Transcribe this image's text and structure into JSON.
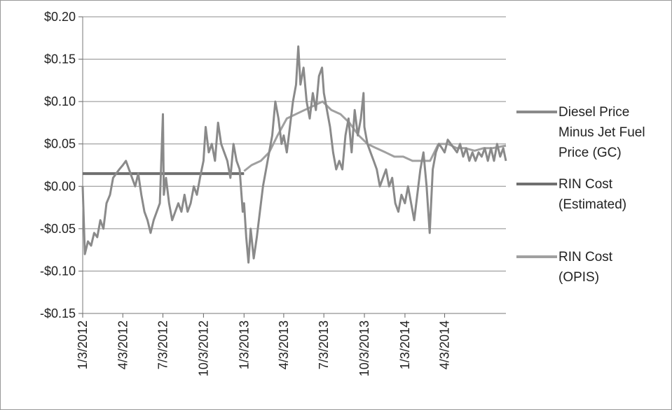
{
  "chart_data": {
    "type": "line",
    "title": "",
    "xlabel": "",
    "ylabel": "",
    "ylim": [
      -0.15,
      0.2
    ],
    "y_ticks": [
      0.2,
      0.15,
      0.1,
      0.05,
      0.0,
      -0.05,
      -0.1,
      -0.15
    ],
    "y_tick_labels": [
      "$0.20",
      "$0.15",
      "$0.10",
      "$0.05",
      "$0.00",
      "-$0.05",
      "-$0.10",
      "-$0.15"
    ],
    "x_range": [
      "2012-01-03",
      "2014-08-20"
    ],
    "x_ticks": [
      "2012-01-03",
      "2012-04-03",
      "2012-07-03",
      "2012-10-03",
      "2013-01-03",
      "2013-04-03",
      "2013-07-03",
      "2013-10-03",
      "2014-01-03",
      "2014-04-03"
    ],
    "x_tick_labels": [
      "1/3/2012",
      "4/3/2012",
      "7/3/2012",
      "10/3/2012",
      "1/3/2013",
      "4/3/2013",
      "7/3/2013",
      "10/3/2013",
      "1/3/2014",
      "4/3/2014"
    ],
    "grid": "horizontal",
    "legend_position": "right",
    "series": [
      {
        "name": "Diesel Price Minus Jet Fuel Price (GC)",
        "color": "#8a8a8a",
        "points": [
          [
            "2012-01-03",
            0.0
          ],
          [
            "2012-01-08",
            -0.08
          ],
          [
            "2012-01-15",
            -0.065
          ],
          [
            "2012-01-22",
            -0.07
          ],
          [
            "2012-01-29",
            -0.055
          ],
          [
            "2012-02-05",
            -0.06
          ],
          [
            "2012-02-12",
            -0.04
          ],
          [
            "2012-02-19",
            -0.05
          ],
          [
            "2012-02-26",
            -0.02
          ],
          [
            "2012-03-05",
            -0.01
          ],
          [
            "2012-03-12",
            0.01
          ],
          [
            "2012-03-19",
            0.015
          ],
          [
            "2012-03-26",
            0.02
          ],
          [
            "2012-04-03",
            0.025
          ],
          [
            "2012-04-10",
            0.03
          ],
          [
            "2012-04-17",
            0.02
          ],
          [
            "2012-04-24",
            0.01
          ],
          [
            "2012-05-01",
            0.0
          ],
          [
            "2012-05-08",
            0.015
          ],
          [
            "2012-05-15",
            -0.01
          ],
          [
            "2012-05-22",
            -0.03
          ],
          [
            "2012-05-29",
            -0.04
          ],
          [
            "2012-06-05",
            -0.055
          ],
          [
            "2012-06-12",
            -0.04
          ],
          [
            "2012-06-19",
            -0.03
          ],
          [
            "2012-06-26",
            -0.02
          ],
          [
            "2012-07-03",
            0.085
          ],
          [
            "2012-07-05",
            -0.01
          ],
          [
            "2012-07-10",
            0.01
          ],
          [
            "2012-07-17",
            -0.02
          ],
          [
            "2012-07-24",
            -0.04
          ],
          [
            "2012-07-31",
            -0.03
          ],
          [
            "2012-08-07",
            -0.02
          ],
          [
            "2012-08-14",
            -0.03
          ],
          [
            "2012-08-21",
            -0.01
          ],
          [
            "2012-08-28",
            -0.03
          ],
          [
            "2012-09-04",
            -0.02
          ],
          [
            "2012-09-11",
            0.0
          ],
          [
            "2012-09-18",
            -0.01
          ],
          [
            "2012-09-25",
            0.01
          ],
          [
            "2012-10-03",
            0.03
          ],
          [
            "2012-10-08",
            0.07
          ],
          [
            "2012-10-15",
            0.04
          ],
          [
            "2012-10-22",
            0.05
          ],
          [
            "2012-10-29",
            0.03
          ],
          [
            "2012-11-05",
            0.075
          ],
          [
            "2012-11-12",
            0.05
          ],
          [
            "2012-11-19",
            0.04
          ],
          [
            "2012-11-26",
            0.03
          ],
          [
            "2012-12-03",
            0.01
          ],
          [
            "2012-12-10",
            0.05
          ],
          [
            "2012-12-17",
            0.03
          ],
          [
            "2012-12-24",
            0.02
          ],
          [
            "2012-12-31",
            -0.03
          ],
          [
            "2013-01-03",
            -0.02
          ],
          [
            "2013-01-08",
            -0.06
          ],
          [
            "2013-01-13",
            -0.09
          ],
          [
            "2013-01-18",
            -0.05
          ],
          [
            "2013-01-25",
            -0.085
          ],
          [
            "2013-02-01",
            -0.06
          ],
          [
            "2013-02-08",
            -0.03
          ],
          [
            "2013-02-15",
            0.0
          ],
          [
            "2013-02-22",
            0.02
          ],
          [
            "2013-03-01",
            0.04
          ],
          [
            "2013-03-08",
            0.06
          ],
          [
            "2013-03-15",
            0.1
          ],
          [
            "2013-03-22",
            0.08
          ],
          [
            "2013-03-29",
            0.05
          ],
          [
            "2013-04-03",
            0.06
          ],
          [
            "2013-04-10",
            0.04
          ],
          [
            "2013-04-17",
            0.07
          ],
          [
            "2013-04-24",
            0.1
          ],
          [
            "2013-05-01",
            0.12
          ],
          [
            "2013-05-06",
            0.165
          ],
          [
            "2013-05-11",
            0.12
          ],
          [
            "2013-05-18",
            0.14
          ],
          [
            "2013-05-25",
            0.1
          ],
          [
            "2013-06-01",
            0.08
          ],
          [
            "2013-06-08",
            0.11
          ],
          [
            "2013-06-15",
            0.09
          ],
          [
            "2013-06-22",
            0.13
          ],
          [
            "2013-06-29",
            0.14
          ],
          [
            "2013-07-03",
            0.11
          ],
          [
            "2013-07-10",
            0.09
          ],
          [
            "2013-07-17",
            0.07
          ],
          [
            "2013-07-24",
            0.04
          ],
          [
            "2013-07-31",
            0.02
          ],
          [
            "2013-08-07",
            0.03
          ],
          [
            "2013-08-14",
            0.02
          ],
          [
            "2013-08-21",
            0.06
          ],
          [
            "2013-08-28",
            0.08
          ],
          [
            "2013-09-04",
            0.04
          ],
          [
            "2013-09-11",
            0.09
          ],
          [
            "2013-09-18",
            0.06
          ],
          [
            "2013-09-25",
            0.08
          ],
          [
            "2013-10-01",
            0.11
          ],
          [
            "2013-10-03",
            0.07
          ],
          [
            "2013-10-10",
            0.05
          ],
          [
            "2013-10-17",
            0.04
          ],
          [
            "2013-10-24",
            0.03
          ],
          [
            "2013-10-31",
            0.02
          ],
          [
            "2013-11-07",
            0.0
          ],
          [
            "2013-11-14",
            0.01
          ],
          [
            "2013-11-21",
            0.02
          ],
          [
            "2013-11-28",
            0.0
          ],
          [
            "2013-12-05",
            0.01
          ],
          [
            "2013-12-12",
            -0.02
          ],
          [
            "2013-12-19",
            -0.03
          ],
          [
            "2013-12-26",
            -0.01
          ],
          [
            "2014-01-03",
            -0.02
          ],
          [
            "2014-01-10",
            0.0
          ],
          [
            "2014-01-17",
            -0.02
          ],
          [
            "2014-01-24",
            -0.04
          ],
          [
            "2014-01-31",
            -0.01
          ],
          [
            "2014-02-07",
            0.02
          ],
          [
            "2014-02-14",
            0.04
          ],
          [
            "2014-02-21",
            0.0
          ],
          [
            "2014-02-28",
            -0.055
          ],
          [
            "2014-03-07",
            0.02
          ],
          [
            "2014-03-14",
            0.04
          ],
          [
            "2014-03-21",
            0.05
          ],
          [
            "2014-03-28",
            0.045
          ],
          [
            "2014-04-03",
            0.04
          ],
          [
            "2014-04-10",
            0.055
          ],
          [
            "2014-04-17",
            0.05
          ],
          [
            "2014-04-24",
            0.045
          ],
          [
            "2014-05-01",
            0.04
          ],
          [
            "2014-05-08",
            0.05
          ],
          [
            "2014-05-15",
            0.035
          ],
          [
            "2014-05-22",
            0.045
          ],
          [
            "2014-05-29",
            0.03
          ],
          [
            "2014-06-05",
            0.04
          ],
          [
            "2014-06-12",
            0.03
          ],
          [
            "2014-06-19",
            0.04
          ],
          [
            "2014-06-26",
            0.035
          ],
          [
            "2014-07-03",
            0.045
          ],
          [
            "2014-07-10",
            0.03
          ],
          [
            "2014-07-17",
            0.045
          ],
          [
            "2014-07-24",
            0.03
          ],
          [
            "2014-07-31",
            0.05
          ],
          [
            "2014-08-07",
            0.035
          ],
          [
            "2014-08-14",
            0.045
          ],
          [
            "2014-08-20",
            0.03
          ]
        ]
      },
      {
        "name": "RIN Cost (Estimated)",
        "color": "#6f6f6f",
        "points": [
          [
            "2012-01-03",
            0.015
          ],
          [
            "2012-12-12",
            0.015
          ],
          [
            "2013-01-03",
            0.015
          ]
        ]
      },
      {
        "name": "RIN Cost (OPIS)",
        "color": "#a0a0a0",
        "points": [
          [
            "2013-01-03",
            0.018
          ],
          [
            "2013-01-20",
            0.025
          ],
          [
            "2013-02-10",
            0.03
          ],
          [
            "2013-03-01",
            0.04
          ],
          [
            "2013-03-20",
            0.06
          ],
          [
            "2013-04-10",
            0.08
          ],
          [
            "2013-04-30",
            0.085
          ],
          [
            "2013-05-20",
            0.09
          ],
          [
            "2013-06-10",
            0.095
          ],
          [
            "2013-06-30",
            0.1
          ],
          [
            "2013-07-20",
            0.09
          ],
          [
            "2013-08-10",
            0.085
          ],
          [
            "2013-08-30",
            0.075
          ],
          [
            "2013-09-20",
            0.06
          ],
          [
            "2013-10-10",
            0.05
          ],
          [
            "2013-10-30",
            0.045
          ],
          [
            "2013-11-20",
            0.04
          ],
          [
            "2013-12-10",
            0.035
          ],
          [
            "2013-12-30",
            0.035
          ],
          [
            "2014-01-20",
            0.03
          ],
          [
            "2014-02-10",
            0.03
          ],
          [
            "2014-03-01",
            0.03
          ],
          [
            "2014-03-20",
            0.05
          ],
          [
            "2014-04-10",
            0.05
          ],
          [
            "2014-05-01",
            0.045
          ],
          [
            "2014-05-20",
            0.045
          ],
          [
            "2014-06-10",
            0.042
          ],
          [
            "2014-06-30",
            0.045
          ],
          [
            "2014-07-20",
            0.045
          ],
          [
            "2014-08-20",
            0.048
          ]
        ]
      }
    ],
    "legend": [
      {
        "lines": [
          "Diesel Price",
          "Minus Jet Fuel",
          "Price (GC)"
        ]
      },
      {
        "lines": [
          "RIN Cost",
          "(Estimated)"
        ]
      },
      {
        "lines": [
          "RIN Cost",
          "(OPIS)"
        ]
      }
    ]
  }
}
